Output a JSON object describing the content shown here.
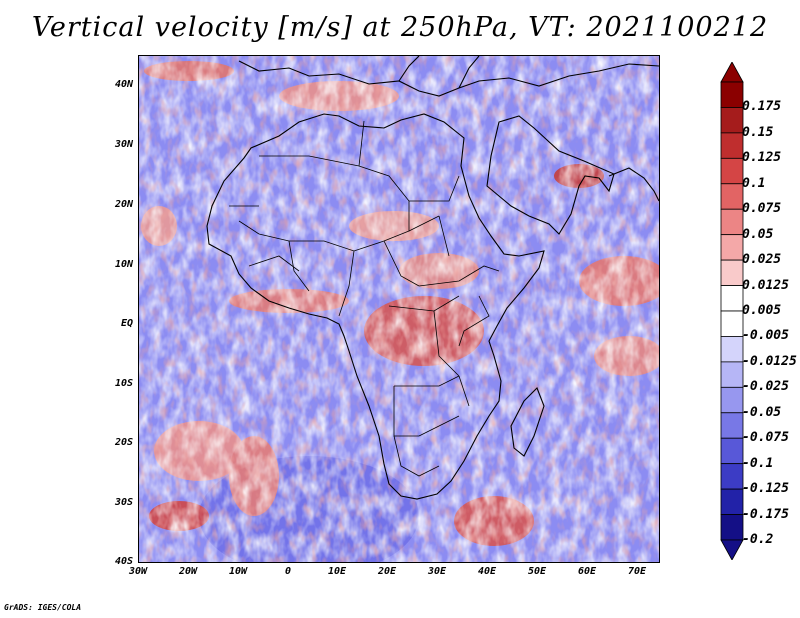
{
  "title": "Vertical velocity [m/s] at 250hPa, VT: 2021100212",
  "credit": "GrADS: IGES/COLA",
  "map": {
    "lat_labels": [
      "40N",
      "30N",
      "20N",
      "10N",
      "EQ",
      "10S",
      "20S",
      "30S",
      "40S"
    ],
    "lon_labels": [
      "30W",
      "20W",
      "10W",
      "0",
      "10E",
      "20E",
      "30E",
      "40E",
      "50E",
      "60E",
      "70E"
    ],
    "lat_range": [
      -40,
      45
    ],
    "lon_range": [
      -30,
      75
    ],
    "field": "vertical velocity",
    "level": "250hPa",
    "colors": {
      "ascent": "#e0605a",
      "descent": "#7f7ff0",
      "neutral": "#ffffff"
    }
  },
  "colorbar": {
    "labels": [
      "0.175",
      "0.15",
      "0.125",
      "0.1",
      "0.075",
      "0.05",
      "0.025",
      "0.0125",
      "0.005",
      "-0.005",
      "-0.0125",
      "-0.025",
      "-0.05",
      "-0.075",
      "-0.1",
      "-0.125",
      "-0.175",
      "-0.2"
    ],
    "colors": [
      "#8b0000",
      "#a51c1c",
      "#bf2e2e",
      "#d44545",
      "#e26464",
      "#ec8585",
      "#f4a8a8",
      "#f9caca",
      "#ffffff",
      "#ffffff",
      "#d4d4fb",
      "#b6b6f6",
      "#9797ef",
      "#7878e6",
      "#5858d8",
      "#3c3cc5",
      "#2222a8",
      "#140f86"
    ]
  }
}
